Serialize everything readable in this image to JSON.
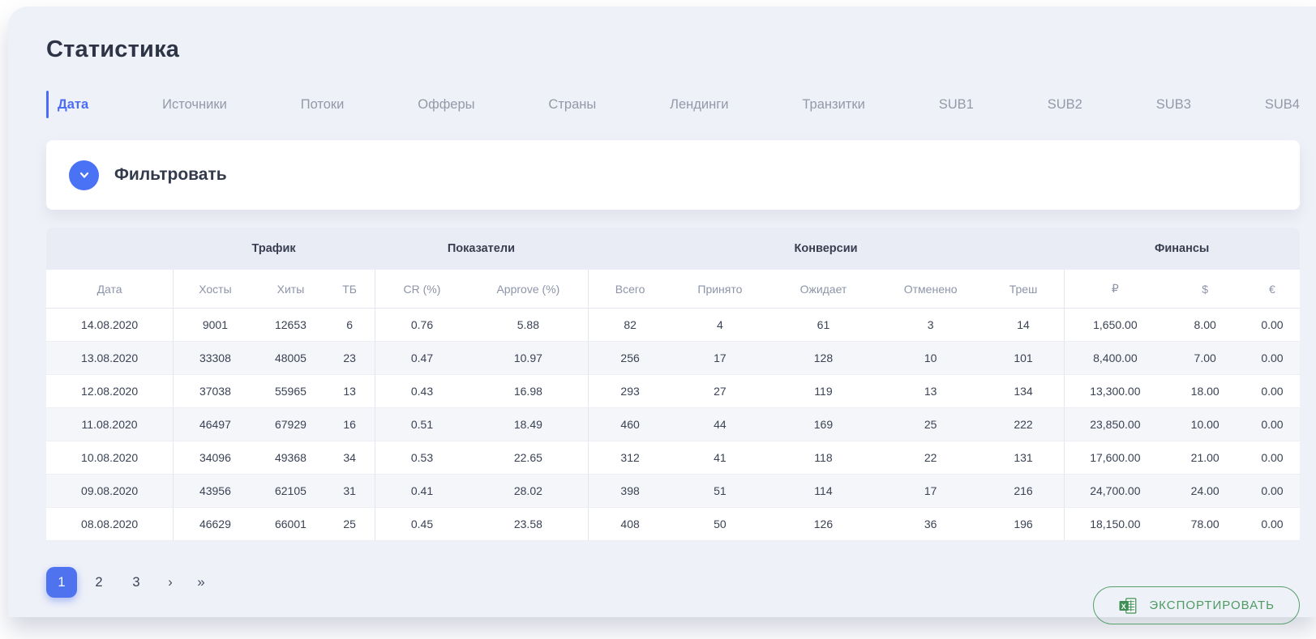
{
  "page": {
    "title": "Статистика"
  },
  "tabs": [
    {
      "id": "data",
      "label": "Дата",
      "active": true
    },
    {
      "id": "istochniki",
      "label": "Источники",
      "active": false
    },
    {
      "id": "potoki",
      "label": "Потоки",
      "active": false
    },
    {
      "id": "offery",
      "label": "Офферы",
      "active": false
    },
    {
      "id": "strany",
      "label": "Страны",
      "active": false
    },
    {
      "id": "landingi",
      "label": "Лендинги",
      "active": false
    },
    {
      "id": "tranzitki",
      "label": "Транзитки",
      "active": false
    },
    {
      "id": "sub1",
      "label": "SUB1",
      "active": false
    },
    {
      "id": "sub2",
      "label": "SUB2",
      "active": false
    },
    {
      "id": "sub3",
      "label": "SUB3",
      "active": false
    },
    {
      "id": "sub4",
      "label": "SUB4",
      "active": false
    }
  ],
  "filter": {
    "label": "Фильтровать"
  },
  "table": {
    "header_groups": [
      {
        "label": "",
        "colspan": 1
      },
      {
        "label": "Трафик",
        "colspan": 3
      },
      {
        "label": "Показатели",
        "colspan": 2
      },
      {
        "label": "Конверсии",
        "colspan": 5
      },
      {
        "label": "Финансы",
        "colspan": 3
      }
    ],
    "columns": [
      "Дата",
      "Хосты",
      "Хиты",
      "ТБ",
      "CR (%)",
      "Approve (%)",
      "Всего",
      "Принято",
      "Ожидает",
      "Отменено",
      "Треш",
      "₽",
      "$",
      "€"
    ],
    "rows": [
      [
        "14.08.2020",
        "9001",
        "12653",
        "6",
        "0.76",
        "5.88",
        "82",
        "4",
        "61",
        "3",
        "14",
        "1,650.00",
        "8.00",
        "0.00"
      ],
      [
        "13.08.2020",
        "33308",
        "48005",
        "23",
        "0.47",
        "10.97",
        "256",
        "17",
        "128",
        "10",
        "101",
        "8,400.00",
        "7.00",
        "0.00"
      ],
      [
        "12.08.2020",
        "37038",
        "55965",
        "13",
        "0.43",
        "16.98",
        "293",
        "27",
        "119",
        "13",
        "134",
        "13,300.00",
        "18.00",
        "0.00"
      ],
      [
        "11.08.2020",
        "46497",
        "67929",
        "16",
        "0.51",
        "18.49",
        "460",
        "44",
        "169",
        "25",
        "222",
        "23,850.00",
        "10.00",
        "0.00"
      ],
      [
        "10.08.2020",
        "34096",
        "49368",
        "34",
        "0.53",
        "22.65",
        "312",
        "41",
        "118",
        "22",
        "131",
        "17,600.00",
        "21.00",
        "0.00"
      ],
      [
        "09.08.2020",
        "43956",
        "62105",
        "31",
        "0.41",
        "28.02",
        "398",
        "51",
        "114",
        "17",
        "216",
        "24,700.00",
        "24.00",
        "0.00"
      ],
      [
        "08.08.2020",
        "46629",
        "66001",
        "25",
        "0.45",
        "23.58",
        "408",
        "50",
        "126",
        "36",
        "196",
        "18,150.00",
        "78.00",
        "0.00"
      ]
    ]
  },
  "pagination": {
    "items": [
      {
        "label": "1",
        "type": "page",
        "active": true
      },
      {
        "label": "2",
        "type": "page",
        "active": false
      },
      {
        "label": "3",
        "type": "page",
        "active": false
      },
      {
        "label": "›",
        "type": "next",
        "active": false
      },
      {
        "label": "»",
        "type": "last",
        "active": false
      }
    ]
  },
  "export": {
    "label": "ЭКСПОРТИРОВАТЬ"
  },
  "colors": {
    "accent_blue": "#4a6cf7",
    "button_blue": "#4f73ee",
    "export_green": "#4d9a63",
    "panel_bg": "#eff1f8",
    "group_header_bg": "#e9ecf4",
    "alt_row_bg": "#f5f6fa"
  }
}
